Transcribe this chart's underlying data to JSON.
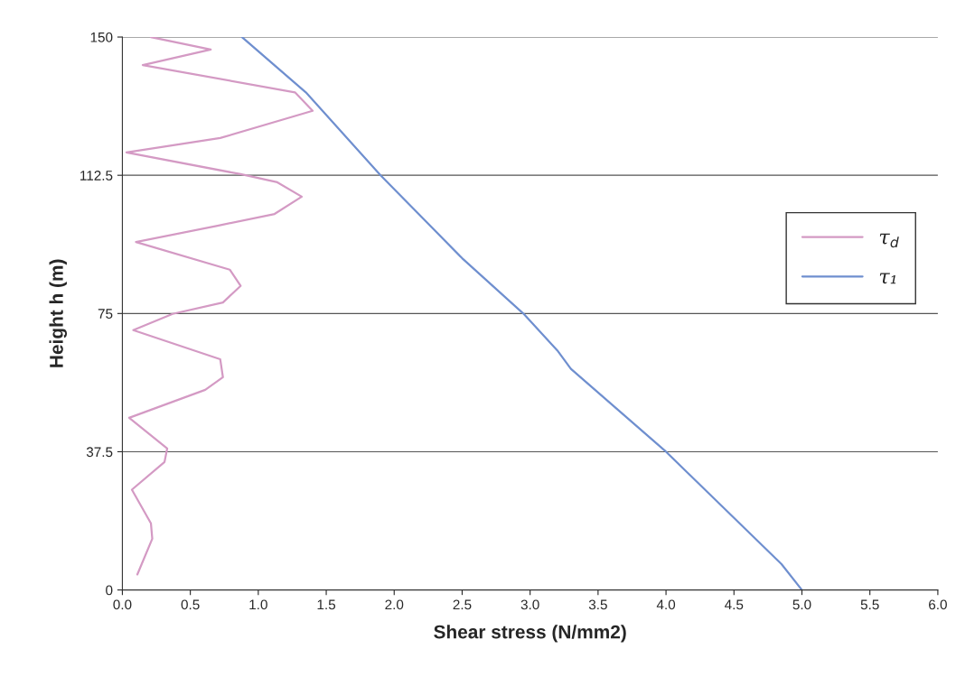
{
  "chart_data": {
    "type": "line",
    "xlabel": "Shear stress (N/mm2)",
    "ylabel": "Height h (m)",
    "series": [
      {
        "name": "τ$_{d}$",
        "color": "#d49ac4",
        "x": [
          0.21,
          0.65,
          0.15,
          1.27,
          1.4,
          0.72,
          0.03,
          0.87,
          1.14,
          1.32,
          1.12,
          0.7,
          0.1,
          0.79,
          0.87,
          0.74,
          0.37,
          0.08,
          0.72,
          0.74,
          0.61,
          0.05,
          0.33,
          0.31,
          0.07,
          0.21,
          0.22,
          0.11
        ],
        "values": [
          150,
          146.6,
          142.4,
          135,
          130,
          122.6,
          118.7,
          112.8,
          110.6,
          106.7,
          102,
          98.8,
          94.4,
          86.9,
          82.5,
          78,
          74.9,
          70.5,
          62.6,
          57.7,
          54.3,
          46.7,
          38.4,
          34.7,
          27.2,
          18.1,
          13.9,
          4.2
        ]
      },
      {
        "name": "τ₁",
        "color": "#6f8fcf",
        "x": [
          0.88,
          1.35,
          1.9,
          2.5,
          2.95,
          3.2,
          3.3,
          4.0,
          4.85,
          5.0
        ],
        "values": [
          150,
          135,
          112.5,
          90,
          75,
          65,
          60,
          37.5,
          7,
          0
        ]
      }
    ],
    "xlim": [
      0,
      6
    ],
    "xticks": [
      {
        "value": 0,
        "label": "0.0"
      },
      0.5,
      {
        "value": 1,
        "label": "1.0"
      },
      1.5,
      {
        "value": 2,
        "label": "2.0"
      },
      2.5,
      {
        "value": 3,
        "label": "3.0"
      },
      3.5,
      {
        "value": 4,
        "label": "4.0"
      },
      4.5,
      {
        "value": 5,
        "label": "5.0"
      },
      5.5,
      {
        "value": 6,
        "label": "6.0"
      }
    ],
    "ylim": [
      0,
      150
    ],
    "yticks": [
      0,
      37.5,
      75,
      112.5,
      150
    ],
    "grid": "y",
    "legend": "right",
    "marker": "none",
    "line_style": "solid"
  }
}
